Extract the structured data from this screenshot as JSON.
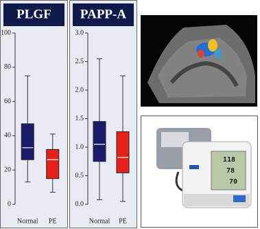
{
  "chart_data": [
    {
      "type": "box",
      "title": "PLGF",
      "categories": [
        "Normal",
        "PE"
      ],
      "min": [
        13,
        7
      ],
      "q1": [
        26,
        15
      ],
      "median": [
        33,
        26
      ],
      "q3": [
        47,
        32
      ],
      "max": [
        75,
        41
      ],
      "colors": [
        "#1b1b6b",
        "#e8201a"
      ],
      "median_color": "#ffffff",
      "ylim": [
        0,
        100
      ],
      "yticks": [
        0,
        20,
        40,
        60,
        80,
        100
      ]
    },
    {
      "type": "box",
      "title": "PAPP-A",
      "categories": [
        "Normal",
        "PE"
      ],
      "min": [
        0.08,
        0.05
      ],
      "q1": [
        0.75,
        0.55
      ],
      "median": [
        1.05,
        0.82
      ],
      "q3": [
        1.45,
        1.27
      ],
      "max": [
        2.55,
        2.25
      ],
      "colors": [
        "#1b1b6b",
        "#e8201a"
      ],
      "median_color": "#ffffff",
      "ylim": [
        0,
        3
      ],
      "yticks": [
        {
          "value": 0,
          "label": "0.0"
        },
        0.5,
        {
          "value": 1,
          "label": "1.0"
        },
        1.5,
        {
          "value": 2,
          "label": "2.0"
        },
        2.5,
        {
          "value": 3,
          "label": "3.0"
        }
      ]
    }
  ],
  "monitor_display": {
    "systolic": "118",
    "diastolic": "78",
    "pulse": "70"
  }
}
